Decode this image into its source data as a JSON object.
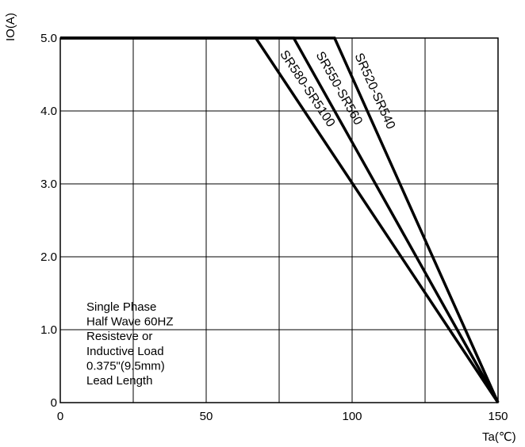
{
  "chart_data": {
    "type": "line",
    "ylabel": "IO(A)",
    "xlabel": "Ta(℃)",
    "xlim": [
      0,
      150
    ],
    "ylim": [
      0,
      5
    ],
    "x_ticks": [
      {
        "value": 0,
        "label": "0"
      },
      {
        "value": 50,
        "label": "50"
      },
      {
        "value": 100,
        "label": "100"
      },
      {
        "value": 150,
        "label": "150"
      }
    ],
    "y_ticks": [
      {
        "value": 0,
        "label": "0"
      },
      {
        "value": 1,
        "label": "1.0"
      },
      {
        "value": 2,
        "label": "2.0"
      },
      {
        "value": 3,
        "label": "3.0"
      },
      {
        "value": 4,
        "label": "4.0"
      },
      {
        "value": 5,
        "label": "5.0"
      }
    ],
    "grid": true,
    "series": [
      {
        "name": "SR580-SR5100",
        "x": [
          0,
          67,
          150
        ],
        "y": [
          5,
          5,
          0
        ]
      },
      {
        "name": "SR550-SR560",
        "x": [
          0,
          80,
          150
        ],
        "y": [
          5,
          5,
          0
        ]
      },
      {
        "name": "SR520-SR540",
        "x": [
          0,
          94,
          150
        ],
        "y": [
          5,
          5,
          0
        ]
      }
    ],
    "annotation_lines": [
      "Single Phase",
      "Half Wave 60HZ",
      "Resisteve or",
      "Inductive Load",
      "0.375\"(9.5mm)",
      "Lead Length"
    ]
  }
}
